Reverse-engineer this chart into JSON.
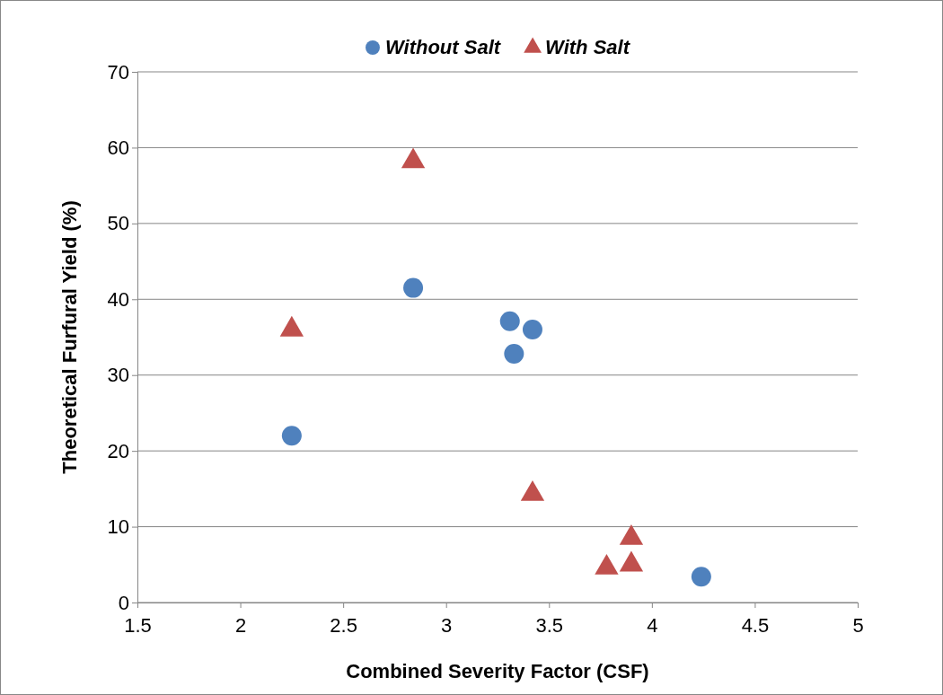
{
  "chart_data": {
    "type": "scatter",
    "xlabel": "Combined Severity Factor (CSF)",
    "ylabel": "Theoretical Furfural Yield (%)",
    "xlim": [
      1.5,
      5
    ],
    "xticks": [
      1.5,
      2,
      2.5,
      3,
      3.5,
      4,
      4.5,
      5
    ],
    "ylim": [
      0,
      70
    ],
    "yticks": [
      0,
      10,
      20,
      30,
      40,
      50,
      60,
      70
    ],
    "grid": "y",
    "legend": "top",
    "series": [
      {
        "name": "Without Salt",
        "color": "#4f81bd",
        "marker": "circle",
        "x": [
          2.25,
          2.84,
          3.31,
          3.33,
          3.42,
          4.24
        ],
        "values": [
          22.0,
          41.5,
          37.1,
          32.8,
          36.0,
          3.4
        ]
      },
      {
        "name": "With Salt",
        "color": "#c0504d",
        "marker": "triangle",
        "x": [
          2.25,
          2.84,
          3.42,
          3.9,
          3.9,
          3.78
        ],
        "values": [
          36.0,
          58.2,
          14.3,
          8.5,
          5.0,
          4.6
        ]
      }
    ]
  }
}
